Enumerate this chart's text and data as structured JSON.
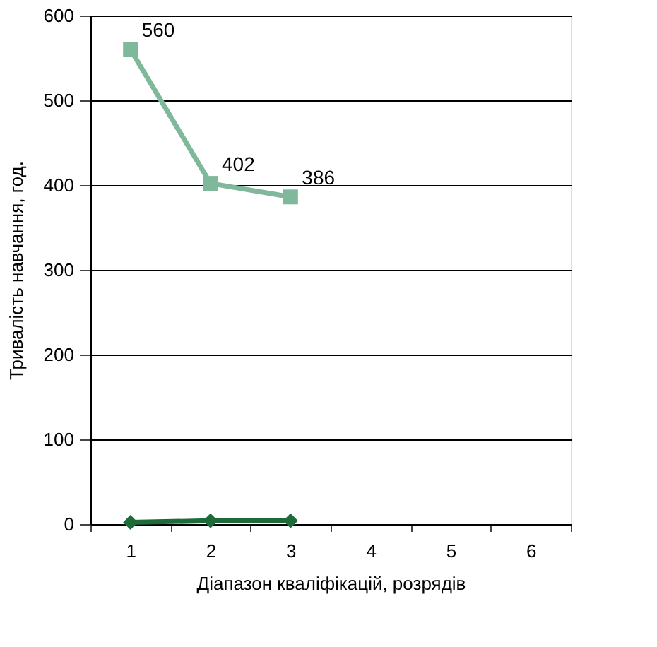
{
  "chart_data": {
    "type": "line",
    "xlabel": "Діапазон кваліфікацій, розрядів",
    "ylabel": "Тривалість навчання, год.",
    "categories": [
      "1",
      "2",
      "3",
      "4",
      "5",
      "6"
    ],
    "series": [
      {
        "color": "#7fb89a",
        "marker": "square",
        "values": [
          560,
          402,
          386,
          null,
          null,
          null
        ],
        "value_labels": [
          "560",
          "402",
          "386",
          null,
          null,
          null
        ]
      },
      {
        "color": "#1e6b3a",
        "marker": "diamond",
        "values": [
          2,
          4,
          4,
          null,
          null,
          null
        ]
      }
    ],
    "ylim": [
      0,
      600
    ],
    "yticks": [
      0,
      100,
      200,
      300,
      400,
      500,
      600
    ],
    "grid": "y"
  }
}
